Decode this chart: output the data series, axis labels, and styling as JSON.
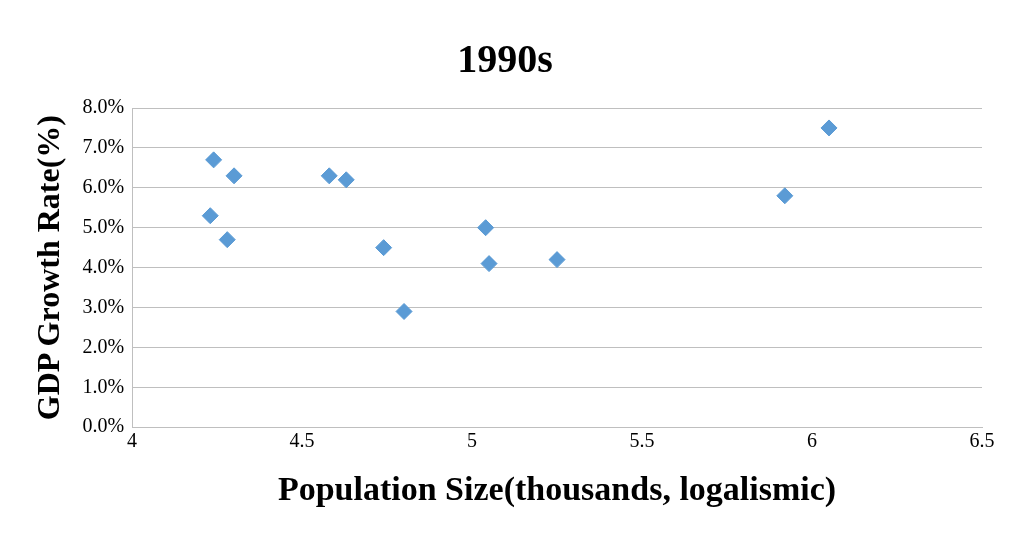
{
  "chart_data": {
    "type": "scatter",
    "title": "1990s",
    "xlabel": "Population Size(thousands, logalismic)",
    "ylabel": "GDP Growth Rate(%)",
    "series": [
      {
        "color": "#5b9bd5",
        "x": [
          4.24,
          4.3,
          4.23,
          4.28,
          4.58,
          4.63,
          4.74,
          4.8,
          5.04,
          5.05,
          5.25,
          5.92,
          6.05
        ],
        "values": [
          6.7,
          6.3,
          5.3,
          4.7,
          6.3,
          6.2,
          4.5,
          2.9,
          5.0,
          4.1,
          4.2,
          5.8,
          7.5
        ]
      }
    ],
    "xlim": [
      4,
      6.5
    ],
    "xticks": [
      4,
      4.5,
      5,
      5.5,
      6,
      6.5
    ],
    "ylim": [
      0,
      8
    ],
    "yticks": [
      {
        "value": 0,
        "label": "0.0%"
      },
      {
        "value": 1,
        "label": "1.0%"
      },
      {
        "value": 2,
        "label": "2.0%"
      },
      {
        "value": 3,
        "label": "3.0%"
      },
      {
        "value": 4,
        "label": "4.0%"
      },
      {
        "value": 5,
        "label": "5.0%"
      },
      {
        "value": 6,
        "label": "6.0%"
      },
      {
        "value": 7,
        "label": "7.0%"
      },
      {
        "value": 8,
        "label": "8.0%"
      }
    ],
    "grid": "y",
    "marker": "diamond",
    "legend": false
  }
}
